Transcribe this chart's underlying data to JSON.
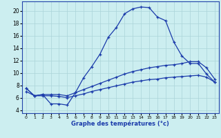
{
  "xlabel": "Graphe des températures (°c)",
  "background_color": "#cceef0",
  "grid_color": "#aad4d8",
  "line_color": "#1a3aaa",
  "xlim": [
    -0.5,
    23.5
  ],
  "ylim": [
    3.5,
    21.5
  ],
  "yticks": [
    4,
    6,
    8,
    10,
    12,
    14,
    16,
    18,
    20
  ],
  "xticks": [
    0,
    1,
    2,
    3,
    4,
    5,
    6,
    7,
    8,
    9,
    10,
    11,
    12,
    13,
    14,
    15,
    16,
    17,
    18,
    19,
    20,
    21,
    22,
    23
  ],
  "line1_x": [
    0,
    1,
    2,
    3,
    4,
    5,
    6,
    7,
    8,
    9,
    10,
    11,
    12,
    13,
    14,
    15,
    16,
    17,
    18,
    19,
    20,
    21,
    22,
    23
  ],
  "line1_y": [
    7.5,
    6.3,
    6.5,
    5.0,
    5.0,
    4.8,
    6.8,
    9.2,
    11.0,
    13.0,
    15.7,
    17.3,
    19.5,
    20.3,
    20.6,
    20.5,
    19.0,
    18.4,
    15.0,
    12.7,
    11.5,
    11.5,
    9.8,
    8.5
  ],
  "line2_x": [
    0,
    1,
    2,
    3,
    4,
    5,
    6,
    7,
    8,
    9,
    10,
    11,
    12,
    13,
    14,
    15,
    16,
    17,
    18,
    19,
    20,
    21,
    22,
    23
  ],
  "line2_y": [
    7.5,
    6.3,
    6.5,
    6.5,
    6.5,
    6.3,
    6.8,
    7.3,
    7.8,
    8.3,
    8.8,
    9.3,
    9.8,
    10.2,
    10.5,
    10.8,
    11.0,
    11.2,
    11.3,
    11.5,
    11.8,
    11.8,
    10.8,
    9.0
  ],
  "line3_x": [
    0,
    1,
    2,
    3,
    4,
    5,
    6,
    7,
    8,
    9,
    10,
    11,
    12,
    13,
    14,
    15,
    16,
    17,
    18,
    19,
    20,
    21,
    22,
    23
  ],
  "line3_y": [
    7.0,
    6.3,
    6.3,
    6.3,
    6.2,
    6.0,
    6.3,
    6.6,
    7.0,
    7.3,
    7.6,
    7.9,
    8.2,
    8.5,
    8.7,
    8.9,
    9.0,
    9.2,
    9.3,
    9.4,
    9.5,
    9.6,
    9.3,
    8.5
  ]
}
